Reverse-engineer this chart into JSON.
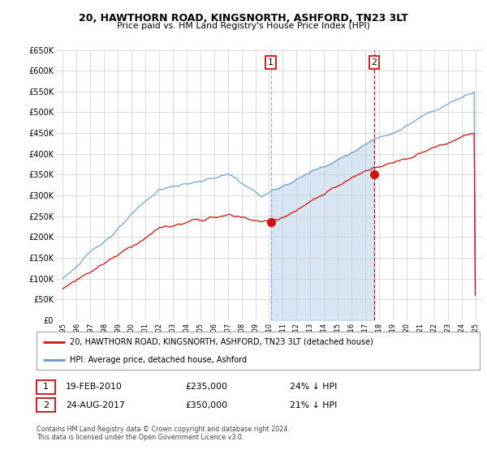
{
  "title": "20, HAWTHORN ROAD, KINGSNORTH, ASHFORD, TN23 3LT",
  "subtitle": "Price paid vs. HM Land Registry's House Price Index (HPI)",
  "ylim": [
    0,
    650000
  ],
  "yticks": [
    0,
    50000,
    100000,
    150000,
    200000,
    250000,
    300000,
    350000,
    400000,
    450000,
    500000,
    550000,
    600000,
    650000
  ],
  "ytick_labels": [
    "£0",
    "£50K",
    "£100K",
    "£150K",
    "£200K",
    "£250K",
    "£300K",
    "£350K",
    "£400K",
    "£450K",
    "£500K",
    "£550K",
    "£600K",
    "£650K"
  ],
  "xlim_start": 1994.5,
  "xlim_end": 2025.5,
  "hpi_color": "#6699cc",
  "price_color": "#cc1111",
  "vline1_color": "#aaaacc",
  "vline2_color": "#cc1111",
  "fill_color": "#ddeeff",
  "point1_x": 2010.12,
  "point1_y": 235000,
  "point2_x": 2017.65,
  "point2_y": 350000,
  "legend_line1": "20, HAWTHORN ROAD, KINGSNORTH, ASHFORD, TN23 3LT (detached house)",
  "legend_line2": "HPI: Average price, detached house, Ashford",
  "table_row1": [
    "1",
    "19-FEB-2010",
    "£235,000",
    "24% ↓ HPI"
  ],
  "table_row2": [
    "2",
    "24-AUG-2017",
    "£350,000",
    "21% ↓ HPI"
  ],
  "footer": "Contains HM Land Registry data © Crown copyright and database right 2024.\nThis data is licensed under the Open Government Licence v3.0.",
  "bg_color": "#ffffff",
  "grid_color": "#cccccc",
  "annotation_box_color": "#cc1111"
}
